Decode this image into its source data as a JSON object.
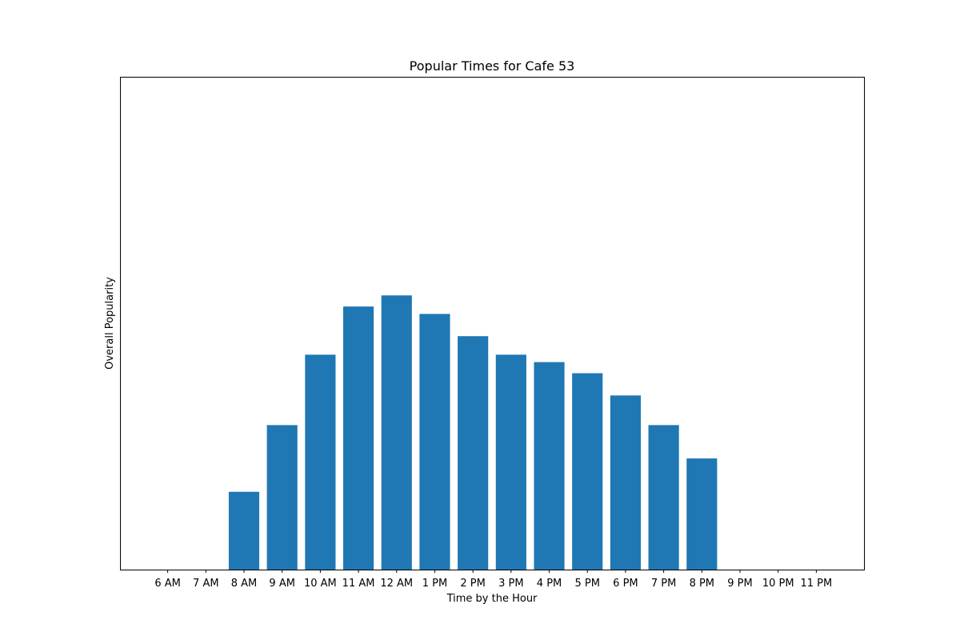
{
  "chart_data": {
    "type": "bar",
    "title": "Popular Times for Cafe 53",
    "xlabel": "Time by the Hour",
    "ylabel": "Overall Popularity",
    "categories": [
      "6 AM",
      "7 AM",
      "8 AM",
      "9 AM",
      "10 AM",
      "11 AM",
      "12 AM",
      "1 PM",
      "2 PM",
      "3 PM",
      "4 PM",
      "5 PM",
      "6 PM",
      "7 PM",
      "8 PM",
      "9 PM",
      "10 PM",
      "11 PM"
    ],
    "values": [
      0,
      0,
      21,
      39,
      58,
      71,
      74,
      69,
      63,
      58,
      56,
      53,
      47,
      39,
      30,
      0,
      0,
      0
    ],
    "ylim": [
      0,
      133
    ],
    "yticks_visible": false,
    "grid": false,
    "bar_color": "#1f77b4"
  }
}
